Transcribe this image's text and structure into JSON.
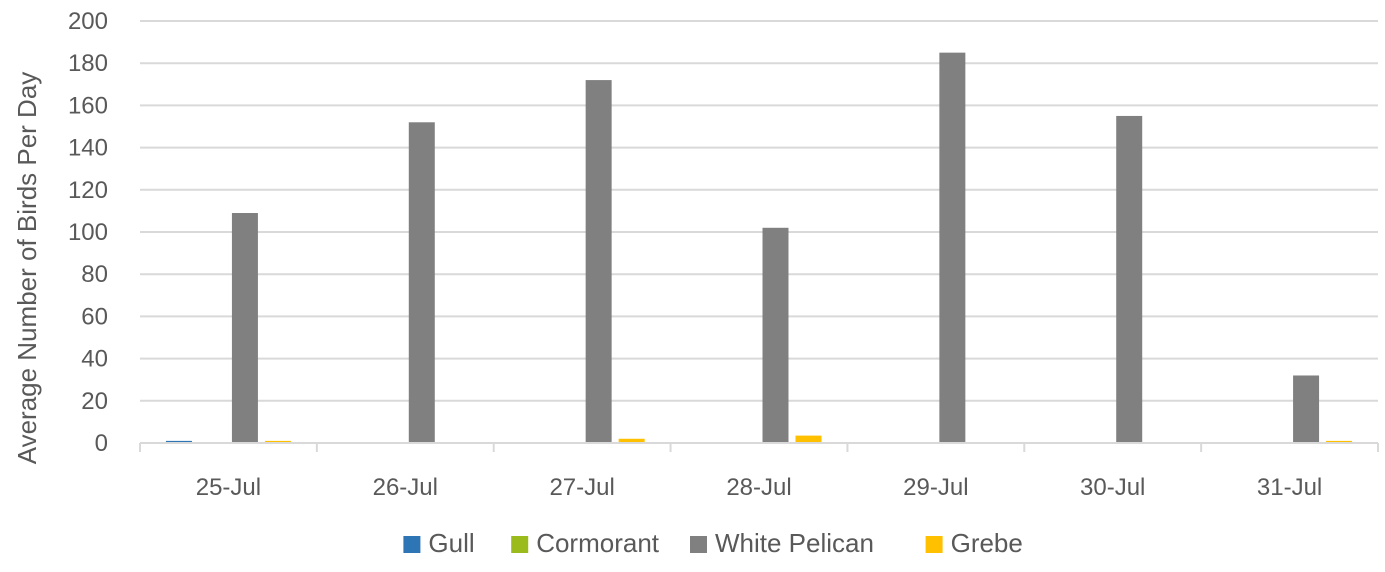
{
  "chart_data": {
    "type": "bar",
    "title": "",
    "xlabel": "",
    "ylabel": "Average Number of Birds Per Day",
    "ylim": [
      0,
      200
    ],
    "yticks": [
      0,
      20,
      40,
      60,
      80,
      100,
      120,
      140,
      160,
      180,
      200
    ],
    "grid": true,
    "legend_position": "bottom",
    "categories": [
      "25-Jul",
      "26-Jul",
      "27-Jul",
      "28-Jul",
      "29-Jul",
      "30-Jul",
      "31-Jul"
    ],
    "series": [
      {
        "name": "Gull",
        "color": "#2E75B6",
        "values": [
          1,
          0,
          0,
          0,
          0,
          0,
          0
        ]
      },
      {
        "name": "Cormorant",
        "color": "#9BBB1D",
        "values": [
          0,
          0,
          0,
          0,
          0,
          0,
          0
        ]
      },
      {
        "name": "White Pelican",
        "color": "#808080",
        "values": [
          109,
          152,
          172,
          102,
          185,
          155,
          32
        ]
      },
      {
        "name": "Grebe",
        "color": "#FFC000",
        "values": [
          1,
          0,
          2,
          3.5,
          0,
          0,
          1
        ]
      }
    ]
  }
}
